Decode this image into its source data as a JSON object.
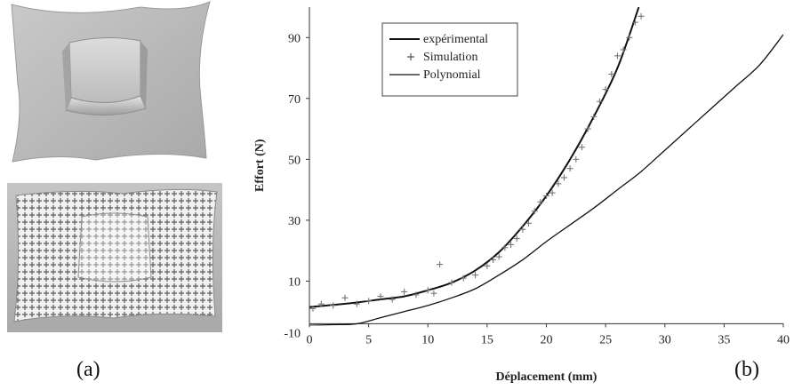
{
  "panels": {
    "a_label": "(a)",
    "b_label": "(b)"
  },
  "images": {
    "top": "3d-rendered-stamped-sheet",
    "bottom": "photo-of-deformed-sheet-with-grid"
  },
  "chart_data": {
    "type": "line",
    "title": "",
    "xlabel": "Déplacement (mm)",
    "ylabel": "Effort (N)",
    "xlim": [
      0,
      40
    ],
    "ylim": [
      -10,
      100
    ],
    "xticks": [
      0,
      5,
      10,
      15,
      20,
      25,
      30,
      35,
      40
    ],
    "yticks": [
      -10,
      10,
      30,
      50,
      70,
      90
    ],
    "grid": false,
    "legend_position": "top-left",
    "series": [
      {
        "name": "expérimental",
        "style": "thick-line",
        "x": [
          0,
          2,
          4,
          6,
          8,
          10,
          12,
          14,
          16,
          18,
          20,
          22,
          24,
          26,
          27.8
        ],
        "y": [
          1.5,
          2.2,
          3,
          4,
          5,
          7,
          9.5,
          13.5,
          19.5,
          28,
          38,
          50,
          64,
          80,
          100
        ]
      },
      {
        "name": "Simulation",
        "style": "plus-markers",
        "x": [
          0.3,
          1,
          2,
          3,
          4,
          5,
          6,
          7,
          8,
          9,
          10,
          10.5,
          11,
          12,
          13,
          14,
          15,
          15.5,
          16,
          16.5,
          17,
          17.5,
          18,
          18.5,
          19,
          19.5,
          20,
          20.5,
          21,
          21.5,
          22,
          22.5,
          23,
          23.5,
          24,
          24.5,
          25,
          25.5,
          26,
          26.5,
          27,
          27.5,
          28
        ],
        "y": [
          1,
          2.5,
          2,
          4.5,
          2.5,
          3.5,
          5,
          4,
          6.5,
          5.5,
          7,
          6,
          15.5,
          9.5,
          11,
          12,
          15,
          17,
          18,
          21,
          22,
          24,
          27,
          29,
          33,
          36,
          38,
          39,
          42,
          44,
          47,
          50,
          54,
          60,
          64,
          69,
          73,
          78,
          84,
          86,
          90,
          95,
          97
        ]
      },
      {
        "name": "Polynomial",
        "style": "thin-line",
        "x": [
          0,
          2,
          4,
          6,
          8,
          10,
          12,
          14,
          16,
          18,
          20,
          22,
          24,
          26,
          28,
          30,
          32,
          34,
          36,
          38,
          40
        ],
        "y": [
          -4.5,
          -4.3,
          -4,
          -2,
          0,
          2,
          4.5,
          7.5,
          12,
          17,
          23,
          28.5,
          34,
          40,
          46,
          53,
          60,
          67,
          74,
          81,
          91
        ]
      }
    ]
  }
}
